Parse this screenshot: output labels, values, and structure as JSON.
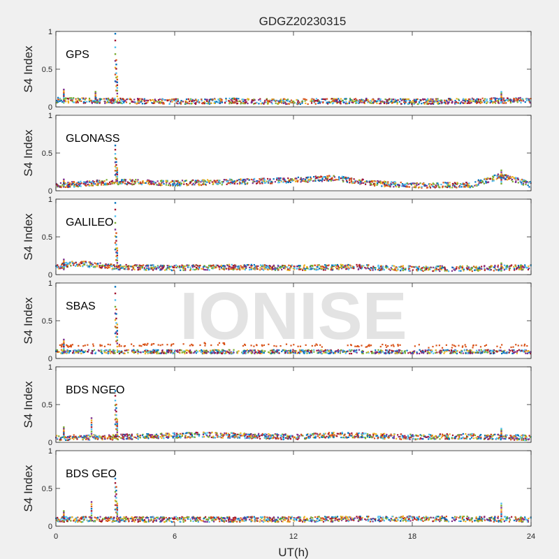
{
  "figure": {
    "title": "GDGZ20230315",
    "watermark": "IONISE",
    "background_color": "#f0f0f0",
    "axes_color": "#ffffff",
    "axis_line_color": "#262626"
  },
  "chart_data": {
    "type": "scatter",
    "title": "GDGZ20230315",
    "xlabel": "UT(h)",
    "ylabel": "S4 Index",
    "xlim": [
      0,
      24
    ],
    "ylim": [
      0,
      1
    ],
    "x_ticks": [
      "0",
      "6",
      "12",
      "18",
      "24"
    ],
    "y_ticks": [
      "0",
      "0.5",
      "1"
    ],
    "grid": false,
    "series_colors": [
      "#0072bd",
      "#d95319",
      "#edb120",
      "#7e2f8e",
      "#77ac30",
      "#4dbeee",
      "#a2142f"
    ],
    "panels": [
      {
        "label": "GPS",
        "baseline": [
          {
            "x": 0,
            "y": 0.09
          },
          {
            "x": 3,
            "y": 0.08
          },
          {
            "x": 6,
            "y": 0.07
          },
          {
            "x": 9,
            "y": 0.08
          },
          {
            "x": 12,
            "y": 0.07
          },
          {
            "x": 15,
            "y": 0.08
          },
          {
            "x": 18,
            "y": 0.07
          },
          {
            "x": 21,
            "y": 0.08
          },
          {
            "x": 24,
            "y": 0.09
          }
        ],
        "spikes": [
          {
            "x": 3.0,
            "y": 0.97
          },
          {
            "x": 3.05,
            "y": 0.62
          },
          {
            "x": 3.1,
            "y": 0.4
          },
          {
            "x": 0.4,
            "y": 0.23
          },
          {
            "x": 2.0,
            "y": 0.2
          },
          {
            "x": 22.5,
            "y": 0.2
          }
        ]
      },
      {
        "label": "GLONASS",
        "baseline": [
          {
            "x": 0,
            "y": 0.07
          },
          {
            "x": 3,
            "y": 0.12
          },
          {
            "x": 6,
            "y": 0.1
          },
          {
            "x": 9,
            "y": 0.12
          },
          {
            "x": 12,
            "y": 0.14
          },
          {
            "x": 14,
            "y": 0.17
          },
          {
            "x": 16,
            "y": 0.1
          },
          {
            "x": 18,
            "y": 0.07
          },
          {
            "x": 21,
            "y": 0.08
          },
          {
            "x": 22.5,
            "y": 0.2
          },
          {
            "x": 24,
            "y": 0.08
          }
        ],
        "spikes": [
          {
            "x": 3.0,
            "y": 0.6
          },
          {
            "x": 3.05,
            "y": 0.42
          },
          {
            "x": 3.1,
            "y": 0.3
          },
          {
            "x": 0.4,
            "y": 0.15
          },
          {
            "x": 22.5,
            "y": 0.27
          }
        ]
      },
      {
        "label": "GALILEO",
        "baseline": [
          {
            "x": 0,
            "y": 0.1
          },
          {
            "x": 1,
            "y": 0.15
          },
          {
            "x": 3,
            "y": 0.1
          },
          {
            "x": 6,
            "y": 0.09
          },
          {
            "x": 9,
            "y": 0.1
          },
          {
            "x": 12,
            "y": 0.09
          },
          {
            "x": 15,
            "y": 0.1
          },
          {
            "x": 18,
            "y": 0.08
          },
          {
            "x": 21,
            "y": 0.08
          },
          {
            "x": 24,
            "y": 0.1
          }
        ],
        "spikes": [
          {
            "x": 3.0,
            "y": 0.95
          },
          {
            "x": 3.05,
            "y": 0.55
          },
          {
            "x": 3.1,
            "y": 0.35
          },
          {
            "x": 0.4,
            "y": 0.2
          },
          {
            "x": 22.5,
            "y": 0.15
          }
        ]
      },
      {
        "label": "SBAS",
        "baseline": [
          {
            "x": 0,
            "y": 0.17
          },
          {
            "x": 4,
            "y": 0.18
          },
          {
            "x": 8,
            "y": 0.19
          },
          {
            "x": 12,
            "y": 0.17
          },
          {
            "x": 16,
            "y": 0.17
          },
          {
            "x": 20,
            "y": 0.16
          },
          {
            "x": 24,
            "y": 0.17
          }
        ],
        "spikes": [
          {
            "x": 3.0,
            "y": 0.95
          },
          {
            "x": 3.05,
            "y": 0.65
          },
          {
            "x": 3.1,
            "y": 0.45
          },
          {
            "x": 0.4,
            "y": 0.25
          }
        ]
      },
      {
        "label": "BDS NGEO",
        "baseline": [
          {
            "x": 0,
            "y": 0.06
          },
          {
            "x": 3,
            "y": 0.07
          },
          {
            "x": 6,
            "y": 0.09
          },
          {
            "x": 7.5,
            "y": 0.1
          },
          {
            "x": 12,
            "y": 0.07
          },
          {
            "x": 14,
            "y": 0.1
          },
          {
            "x": 18,
            "y": 0.07
          },
          {
            "x": 21,
            "y": 0.08
          },
          {
            "x": 24,
            "y": 0.06
          }
        ],
        "spikes": [
          {
            "x": 3.0,
            "y": 0.68
          },
          {
            "x": 3.05,
            "y": 0.5
          },
          {
            "x": 3.1,
            "y": 0.3
          },
          {
            "x": 1.8,
            "y": 0.32
          },
          {
            "x": 0.4,
            "y": 0.2
          },
          {
            "x": 22.5,
            "y": 0.18
          }
        ]
      },
      {
        "label": "BDS GEO",
        "baseline": [
          {
            "x": 0,
            "y": 0.09
          },
          {
            "x": 6,
            "y": 0.09
          },
          {
            "x": 12,
            "y": 0.09
          },
          {
            "x": 18,
            "y": 0.1
          },
          {
            "x": 24,
            "y": 0.09
          }
        ],
        "spikes": [
          {
            "x": 3.0,
            "y": 0.63
          },
          {
            "x": 3.05,
            "y": 0.52
          },
          {
            "x": 3.1,
            "y": 0.3
          },
          {
            "x": 1.8,
            "y": 0.32
          },
          {
            "x": 0.4,
            "y": 0.2
          },
          {
            "x": 22.5,
            "y": 0.3
          }
        ]
      }
    ]
  }
}
